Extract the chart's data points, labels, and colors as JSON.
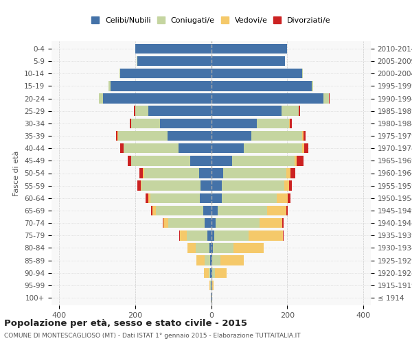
{
  "age_groups": [
    "100+",
    "95-99",
    "90-94",
    "85-89",
    "80-84",
    "75-79",
    "70-74",
    "65-69",
    "60-64",
    "55-59",
    "50-54",
    "45-49",
    "40-44",
    "35-39",
    "30-34",
    "25-29",
    "20-24",
    "15-19",
    "10-14",
    "5-9",
    "0-4"
  ],
  "birth_years": [
    "≤ 1914",
    "1915-1919",
    "1920-1924",
    "1925-1929",
    "1930-1934",
    "1935-1939",
    "1940-1944",
    "1945-1949",
    "1950-1954",
    "1955-1959",
    "1960-1964",
    "1965-1969",
    "1970-1974",
    "1975-1979",
    "1980-1984",
    "1985-1989",
    "1990-1994",
    "1995-1999",
    "2000-2004",
    "2005-2009",
    "2010-2014"
  ],
  "colors": {
    "celibi": "#4472a8",
    "coniugati": "#c5d5a0",
    "vedovi": "#f5c96a",
    "divorziati": "#cc2222"
  },
  "males": {
    "celibi": [
      1,
      1,
      2,
      3,
      5,
      10,
      18,
      20,
      30,
      28,
      32,
      55,
      85,
      115,
      135,
      165,
      285,
      265,
      240,
      195,
      200
    ],
    "coniugati": [
      0,
      1,
      5,
      15,
      35,
      55,
      95,
      125,
      130,
      155,
      145,
      155,
      145,
      130,
      75,
      35,
      10,
      5,
      2,
      1,
      0
    ],
    "vedovi": [
      0,
      2,
      12,
      20,
      22,
      18,
      12,
      10,
      5,
      3,
      2,
      1,
      1,
      1,
      1,
      0,
      0,
      0,
      0,
      0,
      0
    ],
    "divorziati": [
      0,
      0,
      0,
      0,
      0,
      1,
      2,
      3,
      8,
      8,
      10,
      8,
      8,
      5,
      3,
      3,
      1,
      0,
      0,
      0,
      0
    ]
  },
  "females": {
    "celibi": [
      1,
      1,
      2,
      3,
      4,
      8,
      12,
      18,
      28,
      28,
      32,
      55,
      85,
      105,
      120,
      185,
      295,
      265,
      240,
      195,
      200
    ],
    "coniugati": [
      0,
      1,
      8,
      22,
      55,
      90,
      115,
      130,
      145,
      165,
      165,
      165,
      155,
      135,
      85,
      45,
      15,
      4,
      2,
      0,
      0
    ],
    "vedovi": [
      2,
      5,
      30,
      60,
      80,
      90,
      60,
      50,
      28,
      12,
      12,
      5,
      5,
      3,
      2,
      1,
      0,
      0,
      0,
      0,
      0
    ],
    "divorziati": [
      0,
      0,
      0,
      0,
      0,
      2,
      3,
      3,
      8,
      8,
      12,
      18,
      10,
      5,
      5,
      3,
      2,
      0,
      0,
      0,
      0
    ]
  },
  "xlim": [
    -420,
    420
  ],
  "xticks": [
    -400,
    -200,
    0,
    200,
    400
  ],
  "xticklabels": [
    "400",
    "200",
    "0",
    "200",
    "400"
  ],
  "title1": "Popolazione per età, sesso e stato civile - 2015",
  "title2": "COMUNE DI MONTESCAGLIOSO (MT) - Dati ISTAT 1° gennaio 2015 - Elaborazione TUTTAITALIA.IT",
  "ylabel_left": "Fasce di età",
  "legend_labels": [
    "Celibi/Nubili",
    "Coniugati/e",
    "Vedovi/e",
    "Divorziati/e"
  ],
  "bg_color": "#ffffff",
  "plot_bg": "#f8f8f8"
}
